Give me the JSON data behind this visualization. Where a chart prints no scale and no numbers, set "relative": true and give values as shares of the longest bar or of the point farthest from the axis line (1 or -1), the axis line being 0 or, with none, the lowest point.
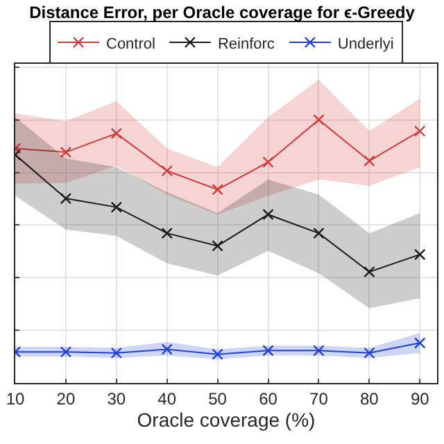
{
  "chart_data": {
    "type": "line",
    "title": "Distance Error, per Oracle coverage for ϵ-Greedy",
    "xlabel": "Oracle coverage (%)",
    "relative": true,
    "x": [
      10,
      20,
      30,
      40,
      50,
      60,
      70,
      80,
      90
    ],
    "xlim": [
      10,
      93.4
    ],
    "xticks": [
      10,
      20,
      30,
      40,
      50,
      60,
      70,
      80,
      90
    ],
    "series": [
      {
        "name": "Control",
        "color": "#d43a3a",
        "values": [
          0.891,
          0.877,
          0.948,
          0.806,
          0.735,
          0.839,
          1.0,
          0.844,
          0.957
        ],
        "lower": [
          0.758,
          0.76,
          0.825,
          0.716,
          0.64,
          0.711,
          0.773,
          0.749,
          0.82
        ],
        "upper": [
          1.024,
          0.995,
          1.071,
          0.891,
          0.82,
          1.01,
          1.152,
          0.957,
          1.08
        ]
      },
      {
        "name": "Reinforc",
        "color": "#1a1a1a",
        "values": [
          0.867,
          0.701,
          0.668,
          0.569,
          0.521,
          0.64,
          0.569,
          0.422,
          0.488
        ],
        "lower": [
          0.711,
          0.583,
          0.559,
          0.455,
          0.408,
          0.502,
          0.417,
          0.284,
          0.322
        ],
        "upper": [
          1.01,
          0.853,
          0.82,
          0.725,
          0.645,
          0.773,
          0.716,
          0.569,
          0.645
        ]
      },
      {
        "name": "Underlyi",
        "color": "#1f3fd6",
        "values": [
          0.118,
          0.118,
          0.114,
          0.128,
          0.109,
          0.123,
          0.123,
          0.114,
          0.152
        ],
        "lower": [
          0.1,
          0.1,
          0.095,
          0.104,
          0.09,
          0.104,
          0.104,
          0.095,
          0.114
        ],
        "upper": [
          0.137,
          0.137,
          0.133,
          0.156,
          0.128,
          0.142,
          0.142,
          0.133,
          0.19
        ]
      }
    ],
    "marker": "cross",
    "line_style": "solid",
    "grid": true,
    "legend": "top"
  }
}
